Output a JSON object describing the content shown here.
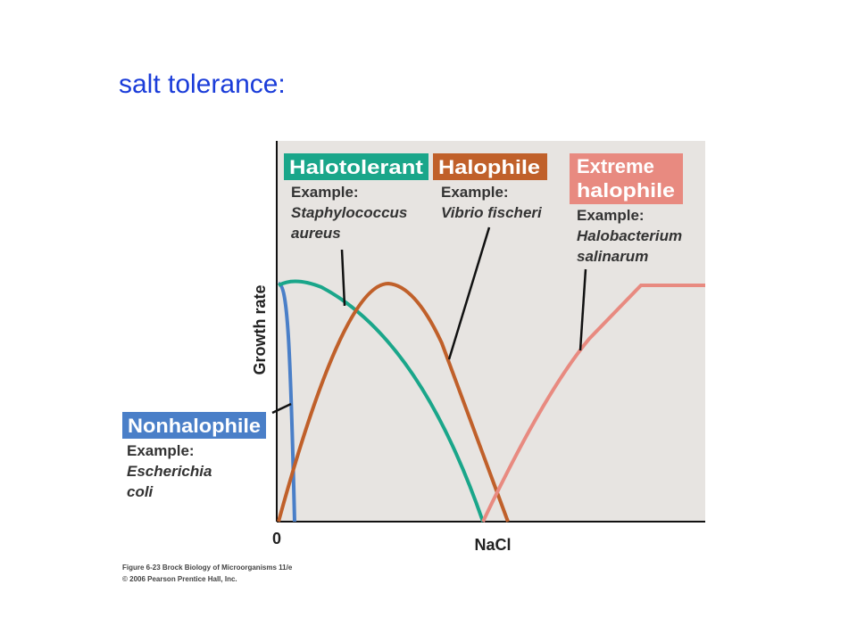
{
  "title": "salt tolerance:",
  "y_axis_label": "Growth rate",
  "x_axis_label": "NaCl",
  "x_origin_label": "0",
  "groups": [
    {
      "label_lines": [
        "Halotolerant"
      ],
      "example_heading": "Example:",
      "example_lines": [
        "Staphylococcus",
        "aureus"
      ]
    },
    {
      "label_lines": [
        "Halophile"
      ],
      "example_heading": "Example:",
      "example_lines": [
        "Vibrio fischeri"
      ]
    },
    {
      "label_lines": [
        "Extreme",
        "halophile"
      ],
      "example_heading": "Example:",
      "example_lines": [
        "Halobacterium",
        "salinarum"
      ]
    },
    {
      "label_lines": [
        "Nonhalophile"
      ],
      "example_heading": "Example:",
      "example_lines": [
        "Escherichia",
        "coli"
      ]
    }
  ],
  "caption": [
    "Figure 6-23 Brock Biology of Microorganisms 11/e",
    "© 2006 Pearson Prentice Hall, Inc."
  ]
}
